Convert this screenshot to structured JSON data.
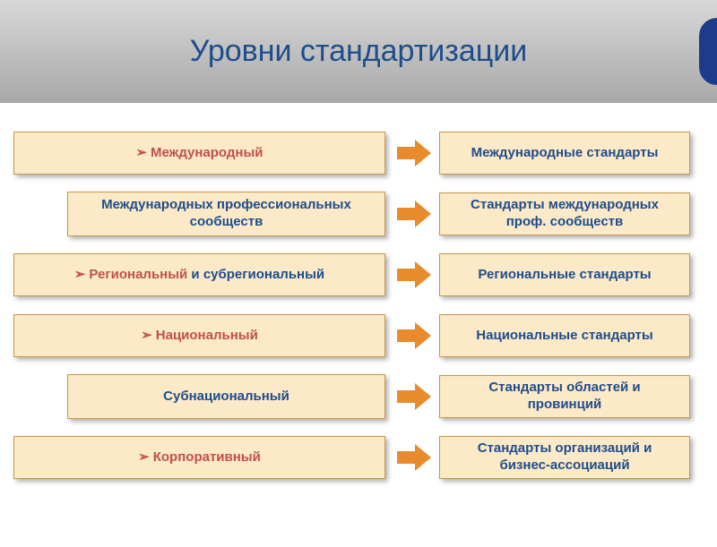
{
  "title": "Уровни стандартизации",
  "rows": [
    {
      "inset": false,
      "left_bullet": true,
      "left_red": "Международный",
      "left_rest": "",
      "right": "Международные стандарты"
    },
    {
      "inset": true,
      "left_bullet": false,
      "left_red": "",
      "left_rest": "Международных профессиональных сообществ",
      "right": "Стандарты международных проф.  сообществ"
    },
    {
      "inset": false,
      "left_bullet": true,
      "left_red": "Региональный",
      "left_rest": " и субрегиональный",
      "right": "Региональные стандарты"
    },
    {
      "inset": false,
      "left_bullet": true,
      "left_red": "Национальный",
      "left_rest": "",
      "right": "Национальные стандарты"
    },
    {
      "inset": true,
      "left_bullet": false,
      "left_red": "",
      "left_rest": "Субнациональный",
      "right": "Стандарты областей и провинций"
    },
    {
      "inset": false,
      "left_bullet": true,
      "left_red": "Корпоративный",
      "left_rest": "",
      "right": "Стандарты организаций и бизнес-ассоциаций"
    }
  ],
  "colors": {
    "box_bg": "#fce9c7",
    "box_border": "#c49948",
    "title_color": "#1e4d8c",
    "text_blue": "#1e4d8c",
    "text_red": "#c0504d",
    "arrow_color": "#e88b2c",
    "header_gradient_top": "#d8d8d8",
    "header_gradient_bottom": "#a8a8a8"
  }
}
